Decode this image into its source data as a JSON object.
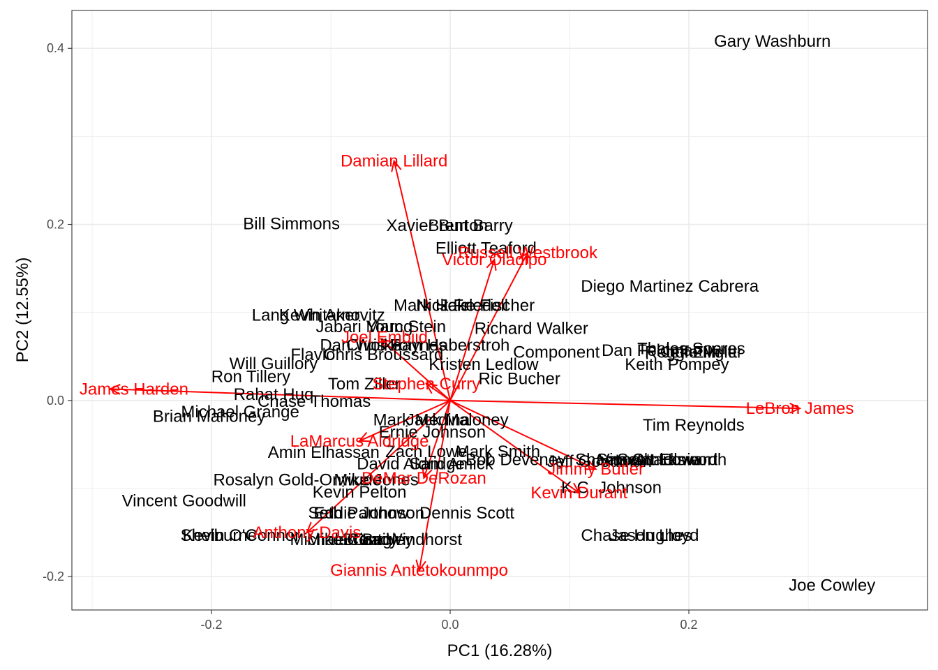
{
  "chart_data": {
    "type": "scatter",
    "xlabel": "PC1 (16.28%)",
    "ylabel": "PC2 (12.55%)",
    "xlim": [
      -0.317,
      0.4
    ],
    "ylim": [
      -0.238,
      0.443
    ],
    "x_ticks": [
      -0.2,
      0.0,
      0.2
    ],
    "x_tick_labels": [
      "-0.2",
      "0.0",
      "0.2"
    ],
    "y_ticks": [
      -0.2,
      0.0,
      0.2,
      0.4
    ],
    "y_tick_labels": [
      "-0.2",
      "0.0",
      "0.2",
      "0.4"
    ],
    "grid": true,
    "colors": {
      "points": "#000000",
      "loadings": "#ff0000",
      "grid": "#ebebeb",
      "panel_border": "#333333"
    },
    "points": [
      {
        "label": "Gary Washburn",
        "x": 0.27,
        "y": 0.408
      },
      {
        "label": "Bill Simmons",
        "x": -0.133,
        "y": 0.201
      },
      {
        "label": "Xavier Burton",
        "x": -0.011,
        "y": 0.199
      },
      {
        "label": "Brent Barry",
        "x": 0.017,
        "y": 0.199
      },
      {
        "label": "Elliott Teaford",
        "x": 0.03,
        "y": 0.173
      },
      {
        "label": "Diego Martinez Cabrera",
        "x": 0.184,
        "y": 0.13
      },
      {
        "label": "Mark Heisler",
        "x": -0.008,
        "y": 0.108
      },
      {
        "label": "Nick Friedell",
        "x": 0.01,
        "y": 0.108
      },
      {
        "label": "Jake Fischer",
        "x": 0.031,
        "y": 0.108
      },
      {
        "label": "Lang Whitaker",
        "x": -0.121,
        "y": 0.097
      },
      {
        "label": "Kevin Arnovitz",
        "x": -0.099,
        "y": 0.097
      },
      {
        "label": "Jabari Young",
        "x": -0.072,
        "y": 0.084
      },
      {
        "label": "Marc Stein",
        "x": -0.037,
        "y": 0.084
      },
      {
        "label": "Richard Walker",
        "x": 0.068,
        "y": 0.082
      },
      {
        "label": "Dan Woike",
        "x": -0.075,
        "y": 0.063
      },
      {
        "label": "Chris Haynes",
        "x": -0.045,
        "y": 0.063
      },
      {
        "label": "Tom Haberstroh",
        "x": 0.0,
        "y": 0.063
      },
      {
        "label": "Component",
        "x": 0.089,
        "y": 0.055
      },
      {
        "label": "Dan Feldman",
        "x": 0.169,
        "y": 0.057
      },
      {
        "label": "Thales Soares",
        "x": 0.202,
        "y": 0.059
      },
      {
        "label": "Reggie Miller",
        "x": 0.204,
        "y": 0.055
      },
      {
        "label": "Jeff Zillgitt",
        "x": 0.209,
        "y": 0.055
      },
      {
        "label": "Flavio",
        "x": -0.115,
        "y": 0.052
      },
      {
        "label": "Chris Broussard",
        "x": -0.056,
        "y": 0.052
      },
      {
        "label": "Kristen Ledlow",
        "x": 0.028,
        "y": 0.041
      },
      {
        "label": "Keith Pompey",
        "x": 0.19,
        "y": 0.041
      },
      {
        "label": "Will Guillory",
        "x": -0.148,
        "y": 0.042
      },
      {
        "label": "Ron Tillery",
        "x": -0.167,
        "y": 0.027
      },
      {
        "label": "Ric Bucher",
        "x": 0.058,
        "y": 0.025
      },
      {
        "label": "Rahat Huq",
        "x": -0.148,
        "y": 0.007
      },
      {
        "label": "Tom Ziller",
        "x": -0.072,
        "y": 0.019
      },
      {
        "label": "Chase Thomas",
        "x": -0.114,
        "y": -0.001
      },
      {
        "label": "Michael Grange",
        "x": -0.176,
        "y": -0.013
      },
      {
        "label": "Brian Mahoney",
        "x": -0.202,
        "y": -0.018
      },
      {
        "label": "Tim Reynolds",
        "x": 0.204,
        "y": -0.028
      },
      {
        "label": "Ernie Johnson",
        "x": -0.015,
        "y": -0.036
      },
      {
        "label": "Mark Medina",
        "x": -0.024,
        "y": -0.022
      },
      {
        "label": "Jack Maloney",
        "x": 0.006,
        "y": -0.022
      },
      {
        "label": "Amin Elhassan",
        "x": -0.106,
        "y": -0.059
      },
      {
        "label": "Zach Lowe",
        "x": -0.02,
        "y": -0.058
      },
      {
        "label": "Mark Smith",
        "x": 0.04,
        "y": -0.058
      },
      {
        "label": "David Aldridge",
        "x": -0.033,
        "y": -0.072
      },
      {
        "label": "Sam Amick",
        "x": 0.001,
        "y": -0.072
      },
      {
        "label": "Bob Deveney",
        "x": 0.055,
        "y": -0.067
      },
      {
        "label": "Jeff Goodman",
        "x": 0.125,
        "y": -0.069
      },
      {
        "label": "Sam Amico",
        "x": 0.158,
        "y": -0.067
      },
      {
        "label": "Shams Charania",
        "x": 0.157,
        "y": -0.067
      },
      {
        "label": "Vincent Ellsworth",
        "x": 0.178,
        "y": -0.067
      },
      {
        "label": "Scott Howard",
        "x": 0.182,
        "y": -0.067
      },
      {
        "label": "Rosalyn Gold-Onwude",
        "x": -0.128,
        "y": -0.09
      },
      {
        "label": "Mike Jones",
        "x": -0.062,
        "y": -0.09
      },
      {
        "label": "K.C. Johnson",
        "x": 0.135,
        "y": -0.099
      },
      {
        "label": "Kevin Pelton",
        "x": -0.076,
        "y": -0.104
      },
      {
        "label": "Vincent Goodwill",
        "x": -0.223,
        "y": -0.114
      },
      {
        "label": "Seth Partnow",
        "x": -0.077,
        "y": -0.128
      },
      {
        "label": "Eddie Johnson",
        "x": -0.068,
        "y": -0.128
      },
      {
        "label": "Dennis Scott",
        "x": 0.014,
        "y": -0.128
      },
      {
        "label": "Shelburne",
        "x": -0.194,
        "y": -0.153
      },
      {
        "label": "Kevin O'Connor",
        "x": -0.175,
        "y": -0.153
      },
      {
        "label": "Mike Conti",
        "x": -0.087,
        "y": -0.158
      },
      {
        "label": "Michael Grady",
        "x": -0.089,
        "y": -0.158
      },
      {
        "label": "Ian Begley",
        "x": -0.064,
        "y": -0.158
      },
      {
        "label": "Brian Windhorst",
        "x": -0.04,
        "y": -0.158
      },
      {
        "label": "Chase Hughes",
        "x": 0.156,
        "y": -0.153
      },
      {
        "label": "Jason Lloyd",
        "x": 0.171,
        "y": -0.153
      },
      {
        "label": "Joe Cowley",
        "x": 0.32,
        "y": -0.21
      }
    ],
    "loadings": [
      {
        "label": "Damian Lillard",
        "x": -0.047,
        "y": 0.272,
        "lx": -0.047,
        "ly": 0.272
      },
      {
        "label": "Russell Westbrook",
        "x": 0.065,
        "y": 0.168,
        "lx": 0.065,
        "ly": 0.168
      },
      {
        "label": "Victor Oladipo",
        "x": 0.037,
        "y": 0.16,
        "lx": 0.037,
        "ly": 0.16
      },
      {
        "label": "Joel Embiid",
        "x": -0.058,
        "y": 0.07,
        "lx": -0.055,
        "ly": 0.072
      },
      {
        "label": "James Harden",
        "x": -0.285,
        "y": 0.013,
        "lx": -0.265,
        "ly": 0.013
      },
      {
        "label": "LeBron James",
        "x": 0.293,
        "y": -0.009,
        "lx": 0.293,
        "ly": -0.009
      },
      {
        "label": "Stephen Curry",
        "x": -0.02,
        "y": 0.019,
        "lx": -0.02,
        "ly": 0.019
      },
      {
        "label": "LaMarcus Aldridge",
        "x": -0.076,
        "y": -0.046,
        "lx": -0.076,
        "ly": -0.046
      },
      {
        "label": "DeMar DeRozan",
        "x": -0.022,
        "y": -0.088,
        "lx": -0.022,
        "ly": -0.088
      },
      {
        "label": "Jimmy Butler",
        "x": 0.122,
        "y": -0.078,
        "lx": 0.122,
        "ly": -0.078
      },
      {
        "label": "Kevin Durant",
        "x": 0.108,
        "y": -0.105,
        "lx": 0.108,
        "ly": -0.105
      },
      {
        "label": "Anthony Davis",
        "x": -0.12,
        "y": -0.15,
        "lx": -0.12,
        "ly": -0.15
      },
      {
        "label": "Giannis Antetokounmpo",
        "x": -0.026,
        "y": -0.193,
        "lx": -0.026,
        "ly": -0.193
      }
    ]
  }
}
